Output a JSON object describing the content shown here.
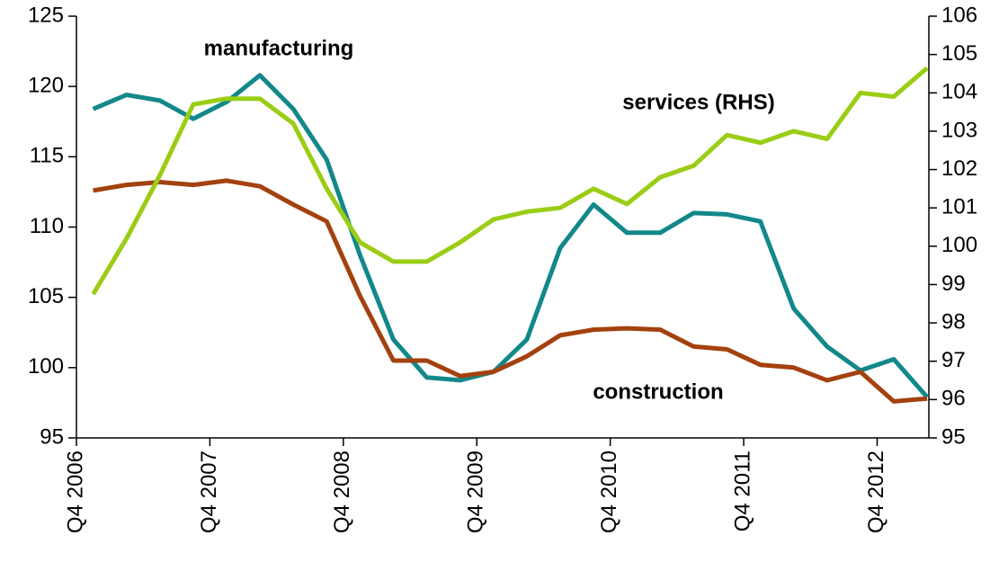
{
  "chart_data": {
    "type": "line",
    "categories": [
      "Q4 2006",
      null,
      null,
      null,
      "Q4 2007",
      null,
      null,
      null,
      "Q4 2008",
      null,
      null,
      null,
      "Q4 2009",
      null,
      null,
      null,
      "Q4 2010",
      null,
      null,
      null,
      "Q4 2011",
      null,
      null,
      null,
      "Q4 2012",
      null
    ],
    "series": [
      {
        "name": "manufacturing",
        "color": "#12888a",
        "values": [
          118.4,
          119.4,
          119.0,
          117.7,
          118.9,
          120.8,
          118.4,
          114.8,
          108.0,
          102.0,
          99.3,
          99.1,
          99.7,
          102.0,
          108.5,
          111.6,
          109.6,
          109.6,
          111.0,
          110.9,
          110.4,
          104.2,
          101.5,
          99.8,
          100.6,
          97.9
        ]
      },
      {
        "name": "construction",
        "color": "#a3410f",
        "values": [
          112.6,
          113.0,
          113.2,
          113.0,
          113.3,
          112.9,
          111.6,
          110.4,
          105.1,
          100.5,
          100.5,
          99.4,
          99.7,
          100.8,
          102.3,
          102.7,
          102.8,
          102.7,
          101.5,
          101.3,
          100.2,
          100.0,
          99.1,
          99.7,
          97.6,
          97.8
        ]
      },
      {
        "name": "services (RHS)",
        "color": "#9acd14",
        "axis": "y2",
        "values": [
          98.75,
          100.2,
          101.85,
          103.7,
          103.85,
          103.85,
          103.2,
          101.5,
          100.1,
          99.6,
          99.6,
          100.1,
          100.7,
          100.9,
          101.0,
          101.5,
          101.1,
          101.8,
          102.1,
          102.9,
          102.7,
          103.0,
          102.8,
          104.0,
          103.9,
          104.65
        ]
      }
    ],
    "ylim": [
      95,
      125
    ],
    "yticks": [
      95,
      100,
      105,
      110,
      115,
      120,
      125
    ],
    "y2lim": [
      95,
      106
    ],
    "y2ticks": [
      95,
      96,
      97,
      98,
      99,
      100,
      101,
      102,
      103,
      104,
      105,
      106
    ]
  }
}
